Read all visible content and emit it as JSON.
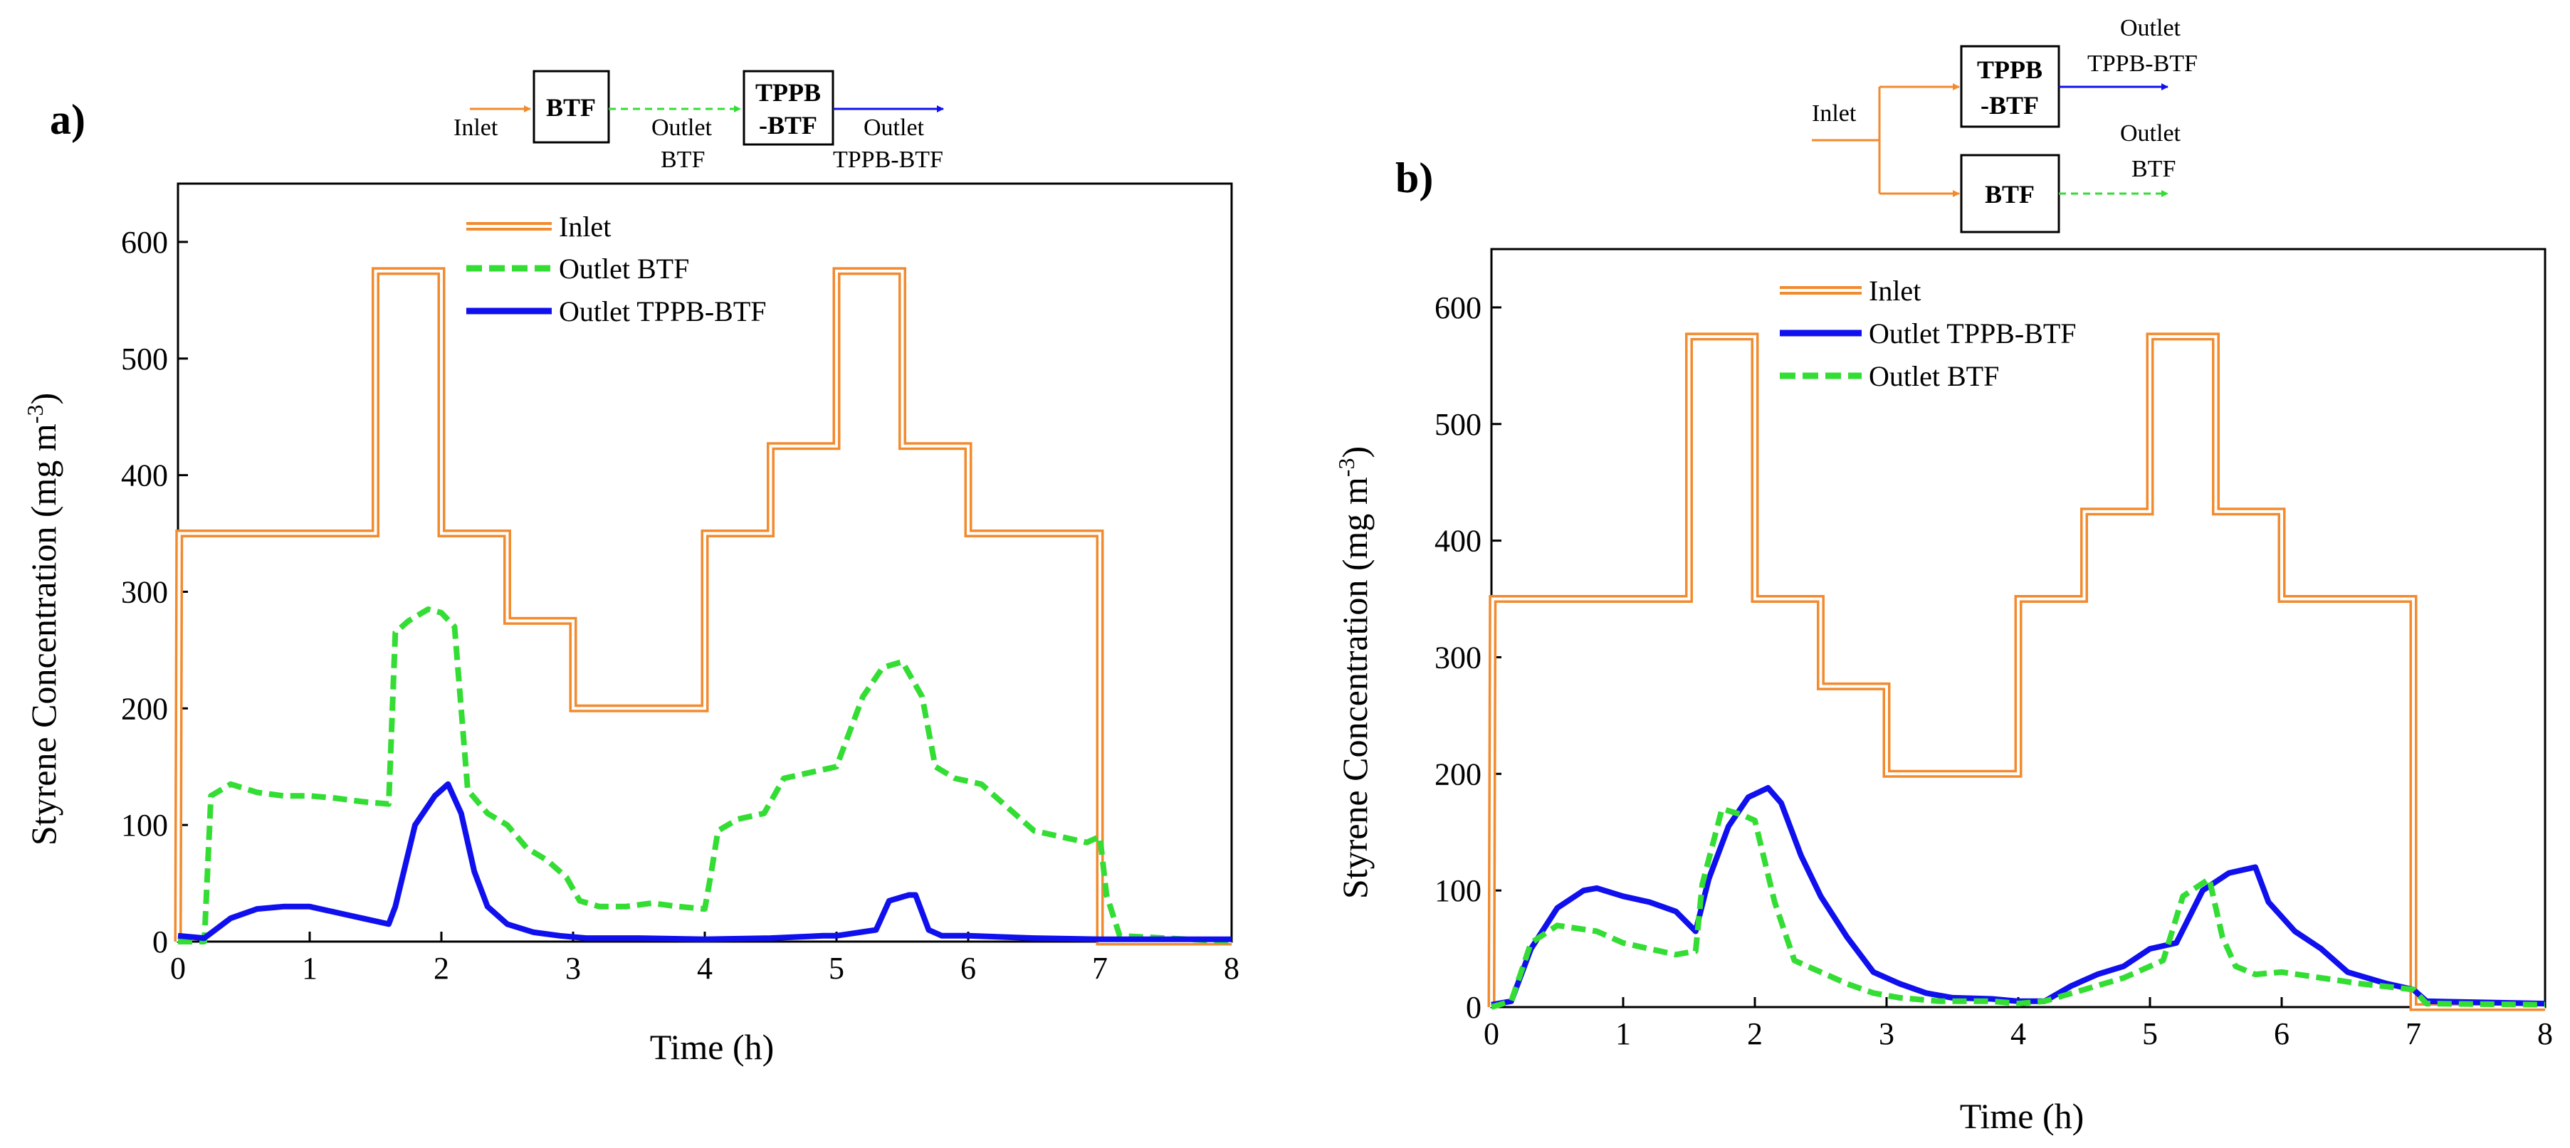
{
  "colors": {
    "inlet": "#f28a2e",
    "outlet_btf": "#33dd33",
    "outlet_tppb": "#1010ee",
    "axis": "#000000"
  },
  "chart_data": [
    {
      "type": "line",
      "panel_label": "a)",
      "xlabel": "Time (h)",
      "ylabel_main": "Styrene Concentration (mg m",
      "ylabel_sup": "-3",
      "ylabel_close": ")",
      "xlim": [
        0,
        8
      ],
      "ylim": [
        0,
        650
      ],
      "xticks": [
        0,
        1,
        2,
        3,
        4,
        5,
        6,
        7,
        8
      ],
      "yticks": [
        0,
        100,
        200,
        300,
        400,
        500,
        600
      ],
      "legend_position": "top-center",
      "diagram": {
        "inlet_label": "Inlet",
        "box1": "BTF",
        "box2_line1": "TPPB",
        "box2_line2": "-BTF",
        "outlet1_line1": "Outlet",
        "outlet1_line2": "BTF",
        "outlet2_line1": "Outlet",
        "outlet2_line2": "TPPB-BTF"
      },
      "series": [
        {
          "name": "Inlet",
          "key": "inlet",
          "style": "double",
          "x": [
            0,
            0.01,
            1.5,
            1.5,
            2.0,
            2.0,
            2.5,
            2.5,
            3.0,
            3.0,
            4.0,
            4.0,
            4.5,
            4.5,
            5.0,
            5.0,
            5.5,
            5.5,
            6.0,
            6.0,
            7.0,
            7.0,
            8.0
          ],
          "y": [
            0,
            350,
            350,
            575,
            575,
            350,
            350,
            275,
            275,
            200,
            200,
            350,
            350,
            425,
            425,
            575,
            575,
            425,
            425,
            350,
            350,
            0,
            0
          ]
        },
        {
          "name": "Outlet BTF",
          "key": "outlet_btf",
          "style": "dashed",
          "x": [
            0,
            0.2,
            0.25,
            0.4,
            0.6,
            0.8,
            1.0,
            1.2,
            1.4,
            1.6,
            1.65,
            1.75,
            1.9,
            2.0,
            2.1,
            2.2,
            2.35,
            2.5,
            2.65,
            2.8,
            2.95,
            3.05,
            3.2,
            3.4,
            3.6,
            3.8,
            4.0,
            4.05,
            4.1,
            4.25,
            4.45,
            4.6,
            4.8,
            5.0,
            5.2,
            5.35,
            5.5,
            5.65,
            5.75,
            5.9,
            6.1,
            6.3,
            6.5,
            6.7,
            6.9,
            7.0,
            7.05,
            7.15,
            8.0
          ],
          "y": [
            0,
            0,
            125,
            135,
            128,
            125,
            125,
            123,
            120,
            118,
            265,
            275,
            285,
            282,
            270,
            130,
            110,
            100,
            80,
            70,
            55,
            35,
            30,
            30,
            33,
            30,
            28,
            60,
            95,
            105,
            110,
            140,
            145,
            150,
            210,
            235,
            240,
            210,
            150,
            140,
            135,
            115,
            95,
            90,
            85,
            90,
            40,
            5,
            0
          ]
        },
        {
          "name": "Outlet TPPB-BTF",
          "key": "outlet_tppb",
          "style": "solid",
          "x": [
            0,
            0.2,
            0.4,
            0.6,
            0.8,
            1.0,
            1.2,
            1.4,
            1.6,
            1.65,
            1.8,
            1.95,
            2.05,
            2.15,
            2.25,
            2.35,
            2.5,
            2.7,
            2.9,
            3.1,
            3.5,
            4.0,
            4.5,
            4.9,
            5.0,
            5.3,
            5.4,
            5.55,
            5.6,
            5.7,
            5.8,
            6.0,
            6.5,
            7.0,
            8.0
          ],
          "y": [
            5,
            3,
            20,
            28,
            30,
            30,
            25,
            20,
            15,
            30,
            100,
            125,
            135,
            110,
            60,
            30,
            15,
            8,
            5,
            3,
            3,
            2,
            3,
            5,
            5,
            10,
            35,
            40,
            40,
            10,
            5,
            5,
            3,
            2,
            2
          ]
        }
      ]
    },
    {
      "type": "line",
      "panel_label": "b)",
      "xlabel": "Time (h)",
      "ylabel_main": "Styrene Concentration (mg m",
      "ylabel_sup": "-3",
      "ylabel_close": ")",
      "xlim": [
        0,
        8
      ],
      "ylim": [
        0,
        650
      ],
      "xticks": [
        0,
        1,
        2,
        3,
        4,
        5,
        6,
        7,
        8
      ],
      "yticks": [
        0,
        100,
        200,
        300,
        400,
        500,
        600
      ],
      "legend_position": "top-center",
      "diagram": {
        "inlet_label": "Inlet",
        "box1_line1": "TPPB",
        "box1_line2": "-BTF",
        "box2": "BTF",
        "outlet1_line1": "Outlet",
        "outlet1_line2": "TPPB-BTF",
        "outlet2_line1": "Outlet",
        "outlet2_line2": "BTF"
      },
      "series": [
        {
          "name": "Inlet",
          "key": "inlet",
          "style": "double",
          "x": [
            0,
            0.01,
            1.5,
            1.5,
            2.0,
            2.0,
            2.5,
            2.5,
            3.0,
            3.0,
            4.0,
            4.0,
            4.5,
            4.5,
            5.0,
            5.0,
            5.5,
            5.5,
            6.0,
            6.0,
            7.0,
            7.0,
            8.0
          ],
          "y": [
            0,
            350,
            350,
            575,
            575,
            350,
            350,
            275,
            275,
            200,
            200,
            350,
            350,
            425,
            425,
            575,
            575,
            425,
            425,
            350,
            350,
            0,
            0
          ]
        },
        {
          "name": "Outlet TPPB-BTF",
          "key": "outlet_tppb",
          "style": "solid",
          "x": [
            0,
            0.15,
            0.3,
            0.5,
            0.7,
            0.8,
            1.0,
            1.2,
            1.4,
            1.55,
            1.65,
            1.8,
            1.95,
            2.1,
            2.2,
            2.35,
            2.5,
            2.7,
            2.9,
            3.1,
            3.3,
            3.5,
            3.8,
            4.0,
            4.2,
            4.4,
            4.6,
            4.8,
            5.0,
            5.2,
            5.4,
            5.6,
            5.8,
            5.9,
            6.1,
            6.3,
            6.5,
            6.8,
            7.0,
            7.1,
            8.0
          ],
          "y": [
            2,
            5,
            50,
            85,
            100,
            102,
            95,
            90,
            82,
            65,
            110,
            155,
            180,
            188,
            175,
            130,
            95,
            60,
            30,
            20,
            12,
            8,
            7,
            5,
            5,
            18,
            28,
            35,
            50,
            55,
            100,
            115,
            120,
            90,
            65,
            50,
            30,
            20,
            15,
            5,
            3
          ]
        },
        {
          "name": "Outlet BTF",
          "key": "outlet_btf",
          "style": "dashed",
          "x": [
            0,
            0.15,
            0.3,
            0.5,
            0.8,
            1.0,
            1.2,
            1.4,
            1.55,
            1.6,
            1.75,
            1.9,
            2.0,
            2.15,
            2.3,
            2.5,
            2.7,
            2.9,
            3.1,
            3.4,
            3.8,
            4.0,
            4.2,
            4.5,
            4.8,
            5.1,
            5.25,
            5.45,
            5.55,
            5.65,
            5.8,
            6.0,
            6.3,
            6.6,
            7.0,
            7.1,
            8.0
          ],
          "y": [
            0,
            5,
            55,
            70,
            65,
            55,
            50,
            45,
            48,
            105,
            170,
            165,
            160,
            90,
            40,
            30,
            20,
            12,
            8,
            5,
            5,
            3,
            5,
            15,
            25,
            40,
            95,
            110,
            60,
            35,
            28,
            30,
            25,
            20,
            15,
            3,
            2
          ]
        }
      ]
    }
  ]
}
